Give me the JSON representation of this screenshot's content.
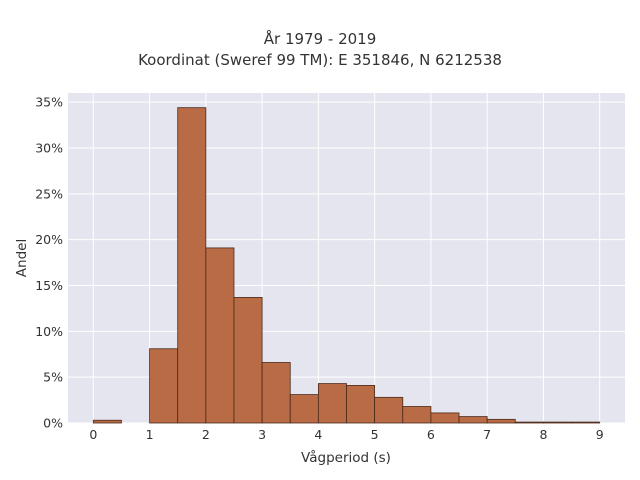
{
  "chart_data": {
    "type": "bar",
    "title_lines": [
      "År 1979 - 2019",
      "Koordinat (Sweref 99 TM): E 351846, N 6212538"
    ],
    "xlabel": "Vågperiod (s)",
    "ylabel": "Andel",
    "xlim": [
      -0.45,
      9.45
    ],
    "ylim": [
      0,
      0.36
    ],
    "bin_width": 0.5,
    "bins": [
      {
        "x0": 0.0,
        "value": 0.003
      },
      {
        "x0": 1.0,
        "value": 0.081
      },
      {
        "x0": 1.5,
        "value": 0.344
      },
      {
        "x0": 2.0,
        "value": 0.191
      },
      {
        "x0": 2.5,
        "value": 0.137
      },
      {
        "x0": 3.0,
        "value": 0.066
      },
      {
        "x0": 3.5,
        "value": 0.031
      },
      {
        "x0": 4.0,
        "value": 0.043
      },
      {
        "x0": 4.5,
        "value": 0.041
      },
      {
        "x0": 5.0,
        "value": 0.028
      },
      {
        "x0": 5.5,
        "value": 0.018
      },
      {
        "x0": 6.0,
        "value": 0.011
      },
      {
        "x0": 6.5,
        "value": 0.007
      },
      {
        "x0": 7.0,
        "value": 0.004
      },
      {
        "x0": 7.5,
        "value": 0.001
      },
      {
        "x0": 8.0,
        "value": 0.001
      },
      {
        "x0": 8.5,
        "value": 0.001
      }
    ],
    "x_ticks": [
      0,
      1,
      2,
      3,
      4,
      5,
      6,
      7,
      8,
      9
    ],
    "x_tick_labels": [
      "0",
      "1",
      "2",
      "3",
      "4",
      "5",
      "6",
      "7",
      "8",
      "9"
    ],
    "y_ticks": [
      0,
      0.05,
      0.1,
      0.15,
      0.2,
      0.25,
      0.3,
      0.35
    ],
    "y_tick_labels": [
      "0%",
      "5%",
      "10%",
      "15%",
      "20%",
      "25%",
      "30%",
      "35%"
    ],
    "grid": true,
    "colors": {
      "bar_fill": "#b86b45",
      "bar_stroke": "#4a2a1a",
      "plot_bg": "#e5e5ef",
      "grid": "#ffffff"
    }
  }
}
